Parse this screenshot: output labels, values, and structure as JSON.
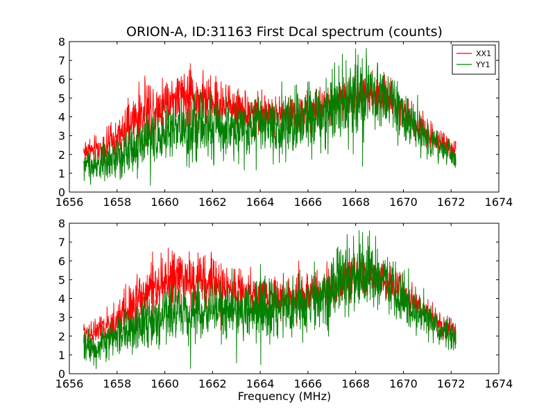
{
  "chart_data": [
    {
      "type": "line",
      "title": "ORION-A, ID:31163 First Dcal spectrum (counts)",
      "xlabel": "",
      "ylabel": "",
      "xlim": [
        1656,
        1674
      ],
      "ylim": [
        0,
        8
      ],
      "xticks": [
        1656,
        1658,
        1660,
        1662,
        1664,
        1666,
        1668,
        1670,
        1672,
        1674
      ],
      "yticks": [
        0,
        1,
        2,
        3,
        4,
        5,
        6,
        7,
        8
      ],
      "grid": false,
      "legend": "top-right",
      "series": [
        {
          "name": "XX1",
          "color": "#ff0000",
          "x": [
            1656.6,
            1657.0,
            1657.5,
            1658.0,
            1658.5,
            1659.0,
            1659.5,
            1660.0,
            1660.5,
            1661.0,
            1661.5,
            1662.0,
            1662.5,
            1663.0,
            1663.5,
            1664.0,
            1664.5,
            1665.0,
            1665.5,
            1666.0,
            1666.5,
            1667.0,
            1667.5,
            1668.0,
            1668.5,
            1669.0,
            1669.5,
            1670.0,
            1670.5,
            1671.0,
            1671.5,
            1672.0,
            1672.2
          ],
          "values": [
            2.2,
            2.2,
            2.4,
            2.8,
            3.5,
            4.1,
            4.5,
            4.8,
            5.0,
            5.0,
            4.9,
            4.8,
            4.6,
            4.5,
            4.3,
            4.2,
            4.1,
            4.1,
            4.1,
            4.2,
            4.3,
            4.6,
            4.9,
            5.2,
            5.2,
            5.1,
            4.9,
            4.4,
            3.7,
            3.1,
            2.7,
            2.3,
            2.1
          ],
          "spread": [
            0.35,
            0.35,
            0.4,
            0.5,
            0.65,
            0.7,
            0.75,
            0.75,
            0.75,
            0.75,
            0.7,
            0.65,
            0.6,
            0.55,
            0.5,
            0.5,
            0.5,
            0.5,
            0.5,
            0.5,
            0.5,
            0.5,
            0.5,
            0.5,
            0.5,
            0.45,
            0.45,
            0.4,
            0.35,
            0.35,
            0.3,
            0.3,
            0.3
          ]
        },
        {
          "name": "YY1",
          "color": "#008000",
          "x": [
            1656.6,
            1657.0,
            1657.5,
            1658.0,
            1658.5,
            1659.0,
            1659.5,
            1660.0,
            1660.5,
            1661.0,
            1661.5,
            1662.0,
            1662.5,
            1663.0,
            1663.5,
            1664.0,
            1664.5,
            1665.0,
            1665.5,
            1666.0,
            1666.5,
            1667.0,
            1667.5,
            1668.0,
            1668.5,
            1669.0,
            1669.5,
            1670.0,
            1670.5,
            1671.0,
            1671.5,
            1672.0,
            1672.2
          ],
          "values": [
            1.5,
            1.4,
            1.6,
            1.9,
            2.3,
            2.7,
            2.9,
            3.1,
            3.2,
            3.3,
            3.4,
            3.4,
            3.4,
            3.4,
            3.4,
            3.4,
            3.5,
            3.6,
            3.7,
            3.8,
            4.0,
            4.5,
            4.9,
            5.1,
            5.2,
            5.0,
            4.7,
            4.1,
            3.5,
            2.9,
            2.4,
            2.0,
            1.7
          ],
          "spread": [
            0.35,
            0.4,
            0.45,
            0.55,
            0.65,
            0.75,
            0.8,
            0.8,
            0.8,
            0.8,
            0.8,
            0.8,
            0.8,
            0.8,
            0.8,
            0.8,
            0.8,
            0.8,
            0.8,
            0.8,
            0.8,
            0.9,
            1.0,
            1.0,
            1.0,
            0.9,
            0.8,
            0.7,
            0.55,
            0.45,
            0.4,
            0.35,
            0.35
          ]
        }
      ]
    },
    {
      "type": "line",
      "title": "",
      "xlabel": "Frequency (MHz)",
      "ylabel": "",
      "xlim": [
        1656,
        1674
      ],
      "ylim": [
        0,
        8
      ],
      "xticks": [
        1656,
        1658,
        1660,
        1662,
        1664,
        1666,
        1668,
        1670,
        1672,
        1674
      ],
      "yticks": [
        0,
        1,
        2,
        3,
        4,
        5,
        6,
        7,
        8
      ],
      "grid": false,
      "legend": "none",
      "series": [
        {
          "name": "",
          "color": "#ff0000",
          "x": [
            1656.6,
            1657.0,
            1657.5,
            1658.0,
            1658.5,
            1659.0,
            1659.5,
            1660.0,
            1660.5,
            1661.0,
            1661.5,
            1662.0,
            1662.5,
            1663.0,
            1663.5,
            1664.0,
            1664.5,
            1665.0,
            1665.5,
            1666.0,
            1666.5,
            1667.0,
            1667.5,
            1668.0,
            1668.5,
            1669.0,
            1669.5,
            1670.0,
            1670.5,
            1671.0,
            1671.5,
            1672.0,
            1672.2
          ],
          "values": [
            2.2,
            2.2,
            2.4,
            2.8,
            3.5,
            4.1,
            4.5,
            4.8,
            5.0,
            5.0,
            4.9,
            4.8,
            4.6,
            4.5,
            4.3,
            4.2,
            4.1,
            4.1,
            4.1,
            4.2,
            4.3,
            4.6,
            4.9,
            5.2,
            5.2,
            5.1,
            4.9,
            4.4,
            3.7,
            3.1,
            2.7,
            2.3,
            2.1
          ],
          "spread": [
            0.35,
            0.35,
            0.4,
            0.5,
            0.65,
            0.7,
            0.75,
            0.75,
            0.75,
            0.75,
            0.7,
            0.65,
            0.6,
            0.55,
            0.5,
            0.5,
            0.5,
            0.5,
            0.5,
            0.5,
            0.5,
            0.5,
            0.5,
            0.5,
            0.5,
            0.45,
            0.45,
            0.4,
            0.35,
            0.35,
            0.3,
            0.3,
            0.3
          ]
        },
        {
          "name": "",
          "color": "#008000",
          "x": [
            1656.6,
            1657.0,
            1657.5,
            1658.0,
            1658.5,
            1659.0,
            1659.5,
            1660.0,
            1660.5,
            1661.0,
            1661.5,
            1662.0,
            1662.5,
            1663.0,
            1663.5,
            1664.0,
            1664.5,
            1665.0,
            1665.5,
            1666.0,
            1666.5,
            1667.0,
            1667.5,
            1668.0,
            1668.5,
            1669.0,
            1669.5,
            1670.0,
            1670.5,
            1671.0,
            1671.5,
            1672.0,
            1672.2
          ],
          "values": [
            1.5,
            1.4,
            1.6,
            1.9,
            2.3,
            2.7,
            2.9,
            3.1,
            3.2,
            3.3,
            3.4,
            3.4,
            3.4,
            3.4,
            3.4,
            3.4,
            3.5,
            3.6,
            3.7,
            3.8,
            4.0,
            4.5,
            4.9,
            5.1,
            5.2,
            5.0,
            4.7,
            4.1,
            3.5,
            2.9,
            2.4,
            2.0,
            1.7
          ],
          "spread": [
            0.35,
            0.4,
            0.45,
            0.55,
            0.65,
            0.75,
            0.8,
            0.8,
            0.8,
            0.8,
            0.8,
            0.8,
            0.8,
            0.8,
            0.8,
            0.8,
            0.8,
            0.8,
            0.8,
            0.8,
            0.8,
            0.9,
            1.0,
            1.0,
            1.0,
            0.9,
            0.8,
            0.7,
            0.55,
            0.45,
            0.4,
            0.35,
            0.35
          ]
        }
      ]
    }
  ]
}
